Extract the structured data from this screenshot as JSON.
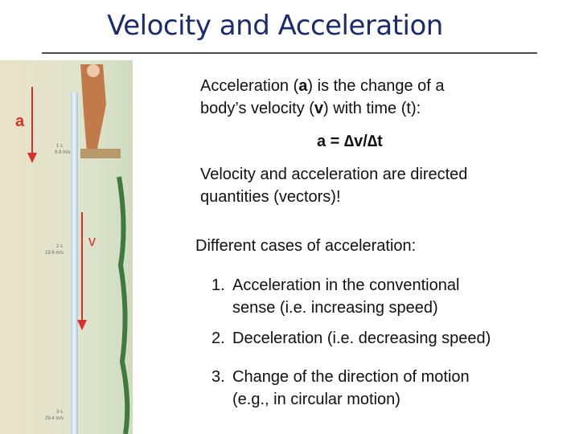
{
  "title": "Velocity and Acceleration",
  "definition": [
    "Acceleration (",
    "a",
    ") is the change of a",
    "body’s velocity (",
    "v",
    ") with time (t):"
  ],
  "formula": "a = ∆v/∆t",
  "vectors_note": [
    "Velocity and acceleration are directed",
    "quantities (vectors)!"
  ],
  "cases_heading": "Different cases of acceleration:",
  "cases": [
    {
      "number": "1.",
      "lines": [
        "Acceleration in the conventional",
        "sense (i.e. increasing speed)"
      ]
    },
    {
      "number": "2.",
      "lines": [
        "Deceleration (i.e. decreasing speed)"
      ]
    },
    {
      "number": "3.",
      "lines": [
        "Change of the direction of motion",
        "(e.g., in circular motion)"
      ]
    }
  ],
  "arrow_labels": [
    "a",
    "v"
  ],
  "image_labels": [
    "1 s",
    "9.8 m/s",
    "2 s",
    "19.6 m/s",
    "3 s",
    "29.4 m/s"
  ]
}
